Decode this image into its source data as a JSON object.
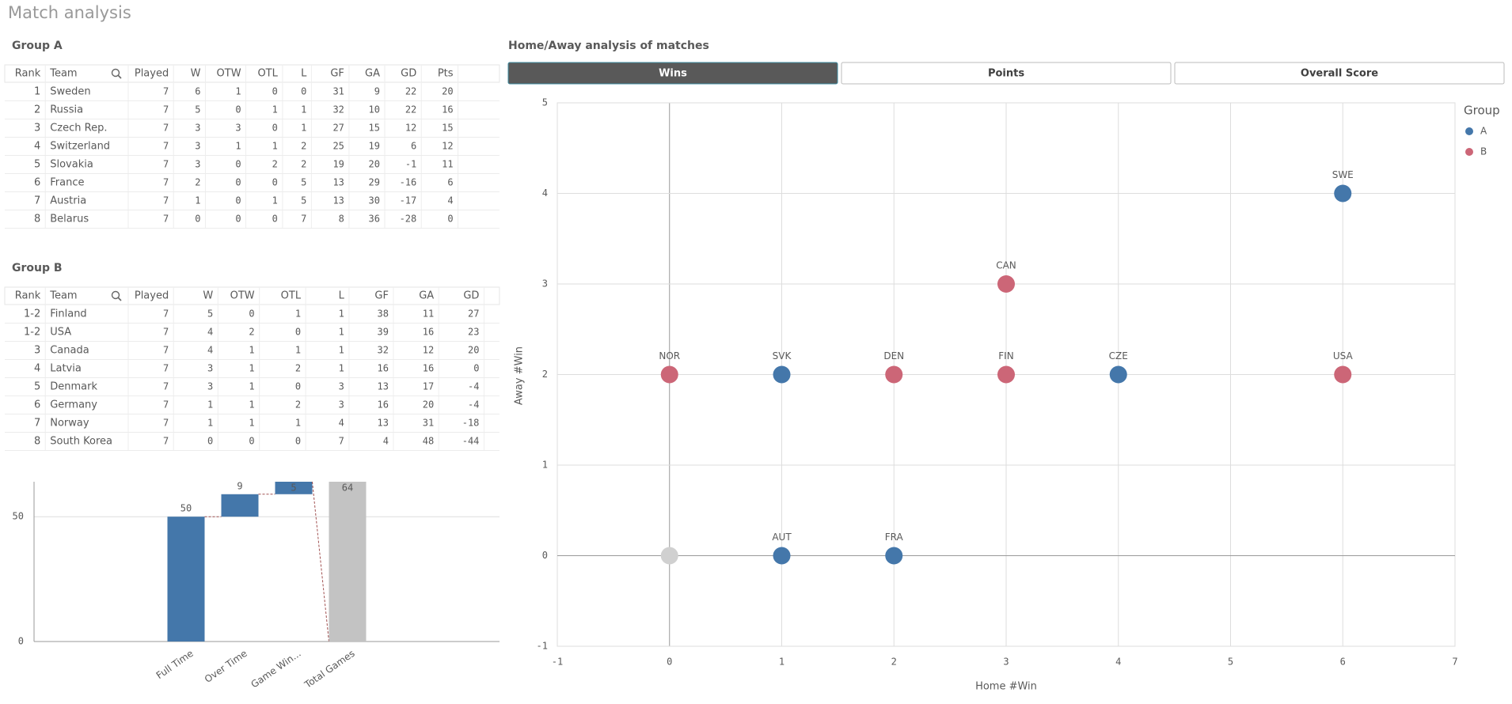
{
  "title": "Match analysis",
  "group_a": {
    "title": "Group A",
    "columns": [
      "Rank",
      "Team",
      "Played",
      "W",
      "OTW",
      "OTL",
      "L",
      "GF",
      "GA",
      "GD",
      "Pts"
    ],
    "rows": [
      [
        1,
        "Sweden",
        7,
        6,
        1,
        0,
        0,
        31,
        9,
        22,
        20
      ],
      [
        2,
        "Russia",
        7,
        5,
        0,
        1,
        1,
        32,
        10,
        22,
        16
      ],
      [
        3,
        "Czech Rep.",
        7,
        3,
        3,
        0,
        1,
        27,
        15,
        12,
        15
      ],
      [
        4,
        "Switzerland",
        7,
        3,
        1,
        1,
        2,
        25,
        19,
        6,
        12
      ],
      [
        5,
        "Slovakia",
        7,
        3,
        0,
        2,
        2,
        19,
        20,
        -1,
        11
      ],
      [
        6,
        "France",
        7,
        2,
        0,
        0,
        5,
        13,
        29,
        -16,
        6
      ],
      [
        7,
        "Austria",
        7,
        1,
        0,
        1,
        5,
        13,
        30,
        -17,
        4
      ],
      [
        8,
        "Belarus",
        7,
        0,
        0,
        0,
        7,
        8,
        36,
        -28,
        0
      ]
    ]
  },
  "group_b": {
    "title": "Group B",
    "columns": [
      "Rank",
      "Team",
      "Played",
      "W",
      "OTW",
      "OTL",
      "L",
      "GF",
      "GA",
      "GD"
    ],
    "rows": [
      [
        "1-2",
        "Finland",
        7,
        5,
        0,
        1,
        1,
        38,
        11,
        27
      ],
      [
        "1-2",
        "USA",
        7,
        4,
        2,
        0,
        1,
        39,
        16,
        23
      ],
      [
        3,
        "Canada",
        7,
        4,
        1,
        1,
        1,
        32,
        12,
        20
      ],
      [
        4,
        "Latvia",
        7,
        3,
        1,
        2,
        1,
        16,
        16,
        0
      ],
      [
        5,
        "Denmark",
        7,
        3,
        1,
        0,
        3,
        13,
        17,
        -4
      ],
      [
        6,
        "Germany",
        7,
        1,
        1,
        2,
        3,
        16,
        20,
        -4
      ],
      [
        7,
        "Norway",
        7,
        1,
        1,
        1,
        4,
        13,
        31,
        -18
      ],
      [
        8,
        "South Korea",
        7,
        0,
        0,
        0,
        7,
        4,
        48,
        -44
      ]
    ]
  },
  "chart_data": [
    {
      "type": "waterfall",
      "categories": [
        "Full Time",
        "Over Time",
        "Game Win...",
        "Total Games"
      ],
      "values": [
        50,
        9,
        5,
        64
      ],
      "measures": [
        "relative",
        "relative",
        "relative",
        "total"
      ],
      "color": "#4477aa",
      "total_color": "#c3c3c3",
      "ylim": [
        0,
        64
      ],
      "yticks": [
        0,
        50
      ],
      "grid": true
    },
    {
      "type": "scatter",
      "title": "Home/Away analysis of matches",
      "tabs": [
        "Wins",
        "Points",
        "Overall Score"
      ],
      "selected_tab": 0,
      "x_label": "Home #Win",
      "y_label": "Away #Win",
      "legend_title": "Group",
      "legend": "right",
      "xlim": [
        -1,
        7
      ],
      "xticks": [
        -1,
        0,
        1,
        2,
        3,
        4,
        5,
        6,
        7
      ],
      "ylim": [
        -1,
        5
      ],
      "yticks": [
        -1,
        0,
        1,
        2,
        3,
        4,
        5
      ],
      "grid": true,
      "series": [
        {
          "name": "A",
          "color": "#4477aa",
          "x": [
            6,
            1,
            4,
            1,
            2
          ],
          "y": [
            4,
            2,
            2,
            0,
            0
          ],
          "labels": [
            "SWE",
            "SVK",
            "CZE",
            "AUT",
            "FRA"
          ]
        },
        {
          "name": "B",
          "color": "#cc6677",
          "x": [
            3,
            0,
            2,
            3,
            6
          ],
          "y": [
            3,
            2,
            2,
            2,
            2
          ],
          "labels": [
            "CAN",
            "NOR",
            "DEN",
            "FIN",
            "USA"
          ]
        },
        {
          "color": "#d0d0d0",
          "x": [
            0
          ],
          "y": [
            0
          ],
          "labels": [
            null
          ]
        }
      ]
    }
  ]
}
